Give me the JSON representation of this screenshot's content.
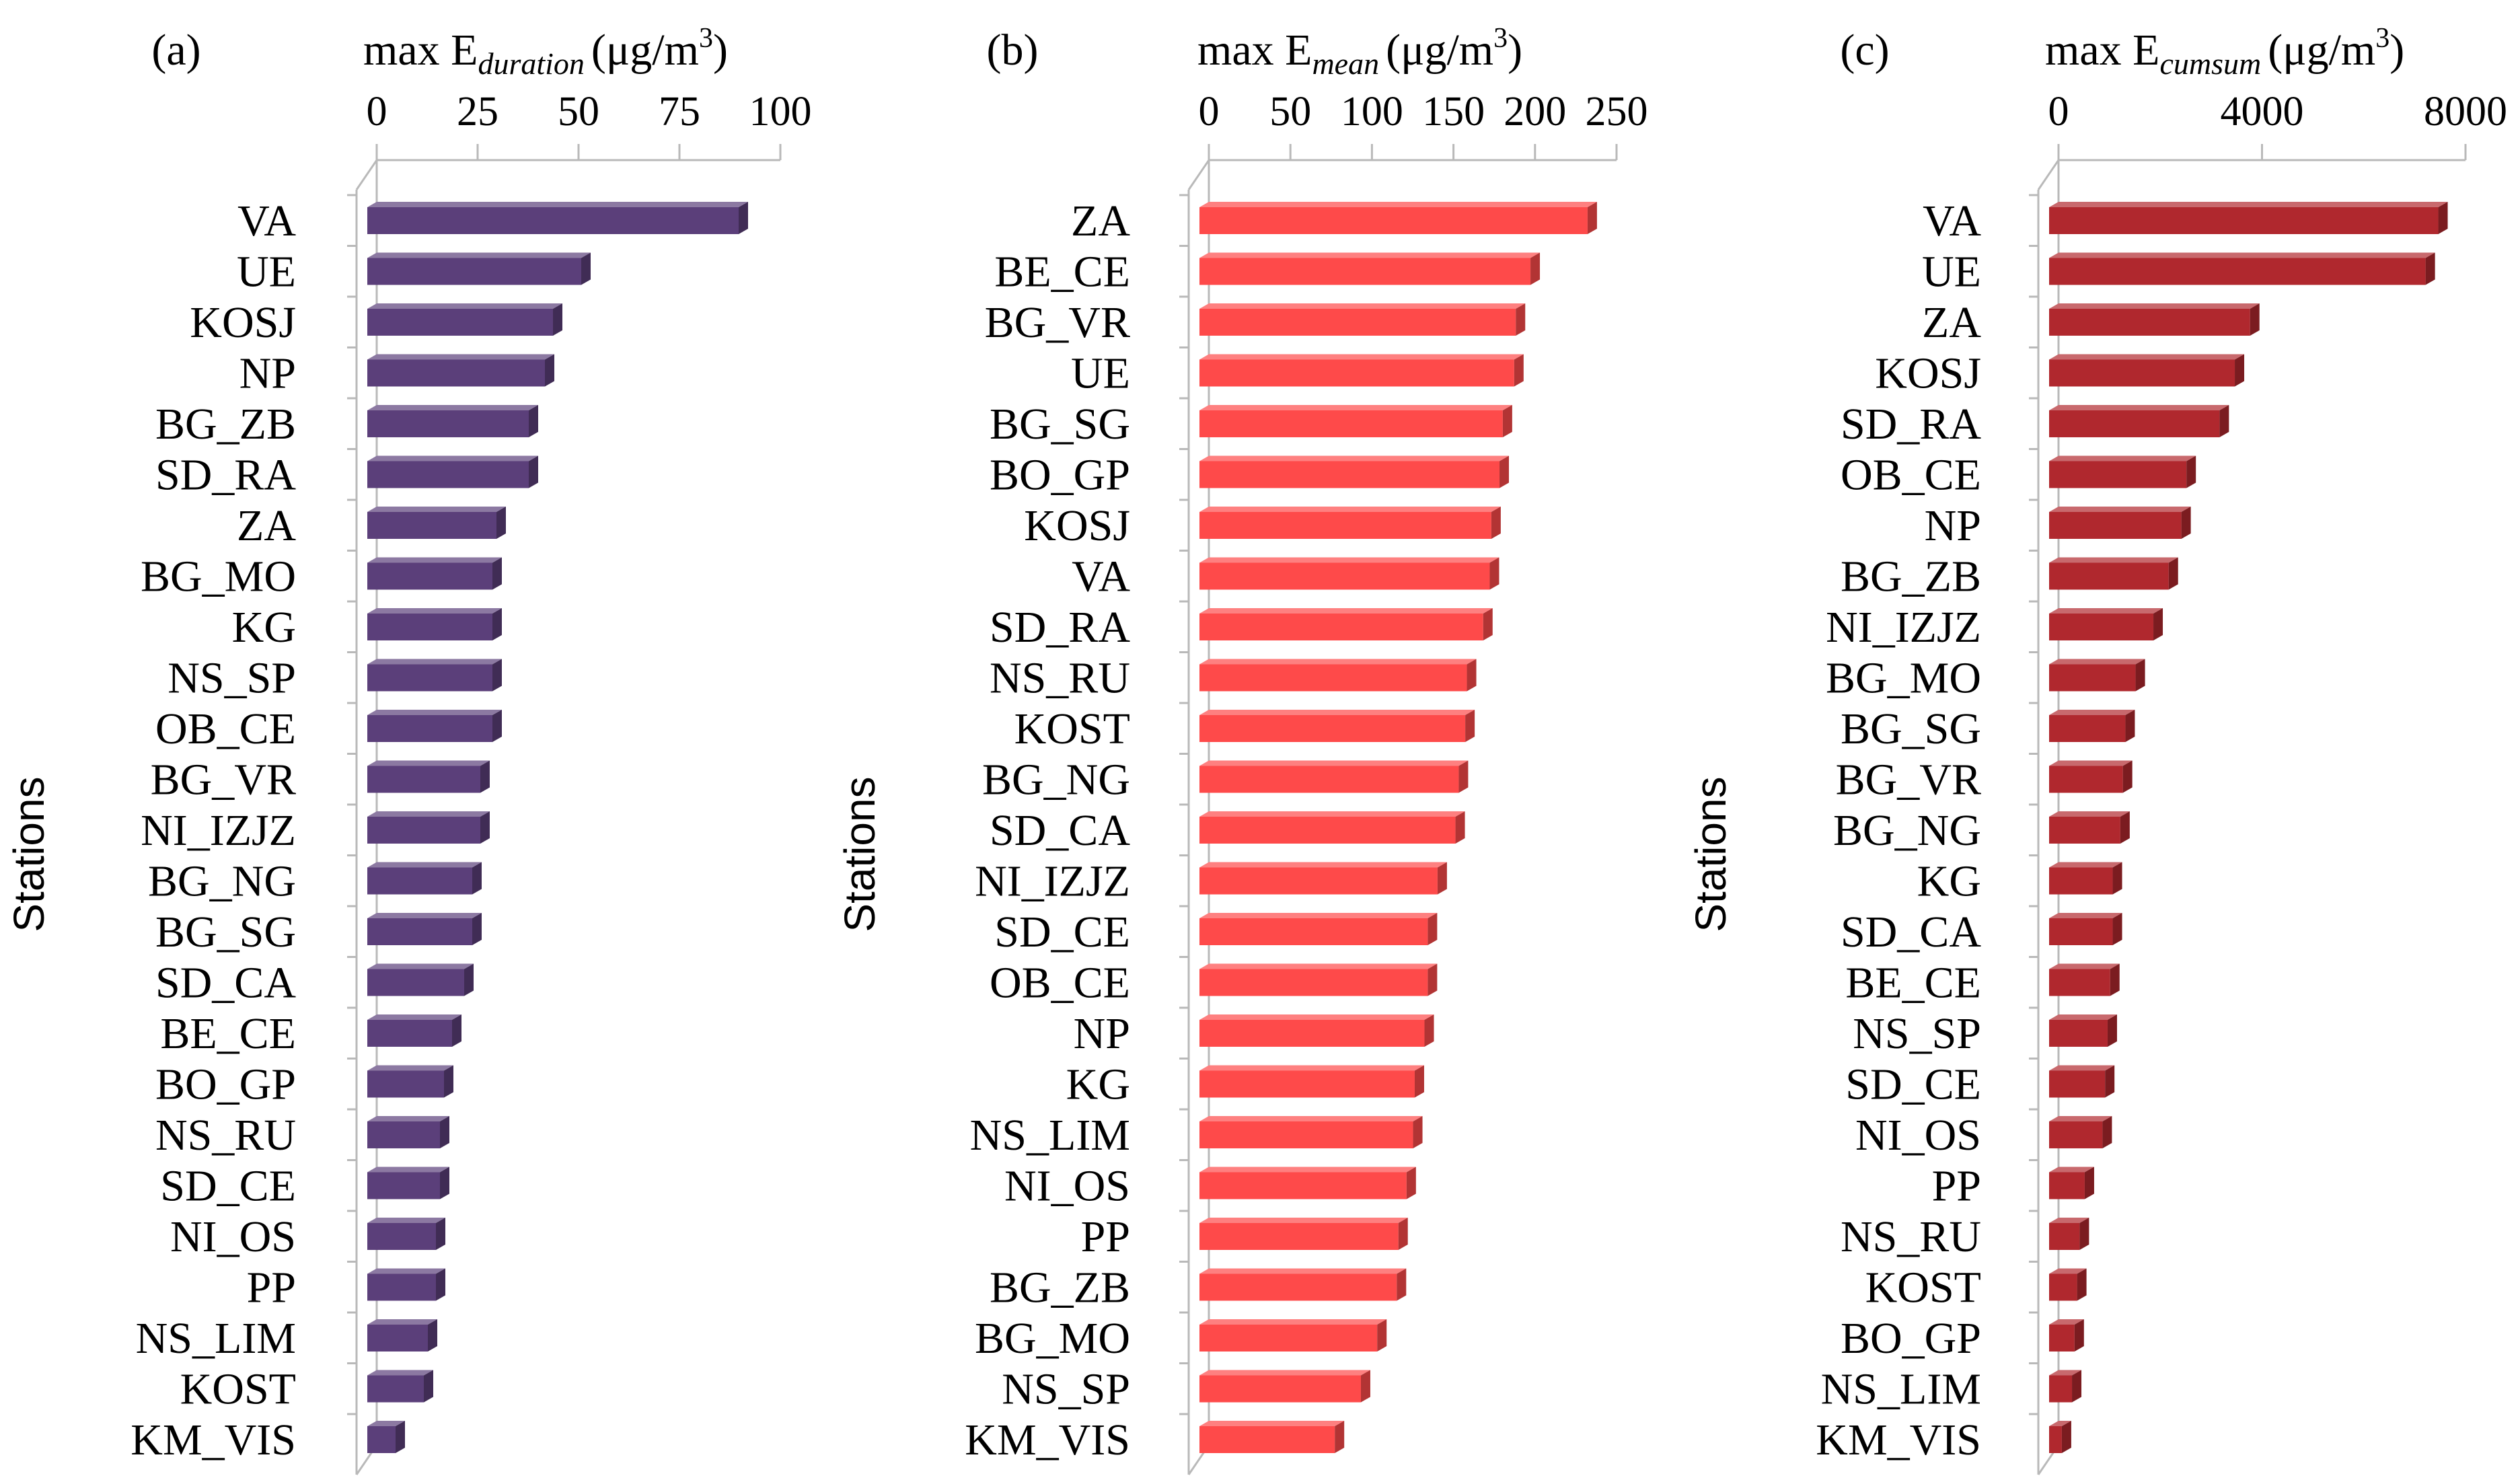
{
  "chart_data": [
    {
      "type": "bar",
      "panel_label": "(a)",
      "title_prefix": "max E",
      "title_subscript": "duration",
      "title_unit": "(μg/m",
      "title_sup": "3",
      "title_close": ")",
      "ylabel": "Stations",
      "xlim": [
        0,
        100
      ],
      "ticks": [
        "0",
        "25",
        "50",
        "75",
        "100"
      ],
      "tick_values": [
        0,
        25,
        50,
        75,
        100
      ],
      "color": "#5b3f7a",
      "categories": [
        "VA",
        "UE",
        "KOSJ",
        "NP",
        "BG_ZB",
        "SD_RA",
        "ZA",
        "BG_MO",
        "KG",
        "NS_SP",
        "OB_CE",
        "BG_VR",
        "NI_IZJZ",
        "BG_NG",
        "BG_SG",
        "SD_CA",
        "BE_CE",
        "BO_GP",
        "NS_RU",
        "SD_CE",
        "NI_OS",
        "PP",
        "NS_LIM",
        "KOST",
        "KM_VIS"
      ],
      "values": [
        92,
        53,
        46,
        44,
        40,
        40,
        32,
        31,
        31,
        31,
        31,
        28,
        28,
        26,
        26,
        24,
        21,
        19,
        18,
        18,
        17,
        17,
        15,
        14,
        7
      ]
    },
    {
      "type": "bar",
      "panel_label": "(b)",
      "title_prefix": "max E",
      "title_subscript": "mean",
      "title_unit": "(μg/m",
      "title_sup": "3",
      "title_close": ")",
      "ylabel": "Stations",
      "xlim": [
        0,
        250
      ],
      "ticks": [
        "0",
        "50",
        "100",
        "150",
        "200",
        "250"
      ],
      "tick_values": [
        0,
        50,
        100,
        150,
        200,
        250
      ],
      "color": "#fe4a4a",
      "categories": [
        "ZA",
        "BE_CE",
        "BG_VR",
        "UE",
        "BG_SG",
        "BO_GP",
        "KOSJ",
        "VA",
        "SD_RA",
        "NS_RU",
        "KOST",
        "BG_NG",
        "SD_CA",
        "NI_IZJZ",
        "SD_CE",
        "OB_CE",
        "NP",
        "KG",
        "NS_LIM",
        "NI_OS",
        "PP",
        "BG_ZB",
        "BG_MO",
        "NS_SP",
        "KM_VIS"
      ],
      "values": [
        238,
        203,
        194,
        193,
        186,
        184,
        179,
        178,
        174,
        164,
        163,
        159,
        157,
        146,
        140,
        140,
        138,
        132,
        131,
        127,
        122,
        121,
        109,
        99,
        83
      ]
    },
    {
      "type": "bar",
      "panel_label": "(c)",
      "title_prefix": "max E",
      "title_subscript": "cumsum",
      "title_unit": "(μg/m",
      "title_sup": "3",
      "title_close": ")",
      "ylabel": "Stations",
      "xlim": [
        0,
        8000
      ],
      "ticks": [
        "0",
        "4000",
        "8000"
      ],
      "tick_values": [
        0,
        4000,
        8000
      ],
      "color": "#b0282e",
      "categories": [
        "VA",
        "UE",
        "ZA",
        "KOSJ",
        "SD_RA",
        "OB_CE",
        "NP",
        "BG_ZB",
        "NI_IZJZ",
        "BG_MO",
        "BG_SG",
        "BG_VR",
        "BG_NG",
        "KG",
        "SD_CA",
        "BE_CE",
        "NS_SP",
        "SD_CE",
        "NI_OS",
        "PP",
        "NS_RU",
        "KOST",
        "BO_GP",
        "NS_LIM",
        "KM_VIS"
      ],
      "values": [
        7650,
        7400,
        3950,
        3650,
        3350,
        2700,
        2600,
        2350,
        2050,
        1700,
        1500,
        1450,
        1400,
        1250,
        1250,
        1200,
        1150,
        1100,
        1050,
        700,
        600,
        550,
        500,
        450,
        250
      ]
    }
  ]
}
